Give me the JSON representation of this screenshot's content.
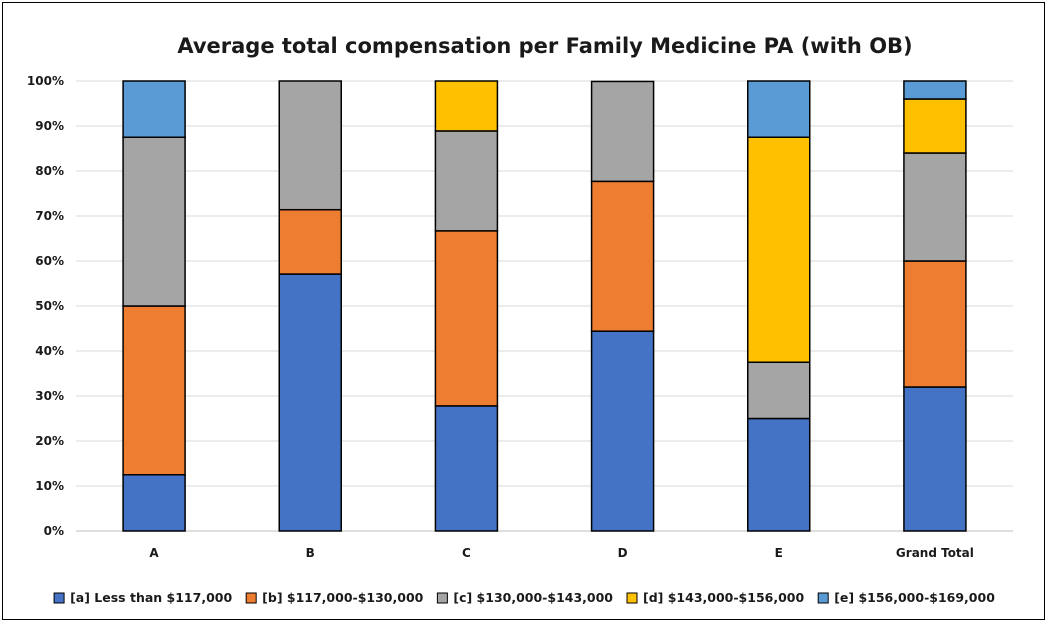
{
  "chart_data": {
    "type": "bar",
    "stacked": true,
    "title": "Average total compensation per Family Medicine PA (with OB)",
    "xlabel": "",
    "ylabel": "",
    "ylim": [
      0,
      100
    ],
    "y_ticks": [
      "0%",
      "10%",
      "20%",
      "30%",
      "40%",
      "50%",
      "60%",
      "70%",
      "80%",
      "90%",
      "100%"
    ],
    "grid": true,
    "legend_position": "bottom",
    "categories": [
      "A",
      "B",
      "C",
      "D",
      "E",
      "Grand Total"
    ],
    "series": [
      {
        "name": "[a] Less than $117,000",
        "color": "#4472C4",
        "values": [
          12.5,
          57.1,
          27.8,
          44.4,
          25.0,
          32.0
        ]
      },
      {
        "name": "[b] $117,000-$130,000",
        "color": "#ED7D31",
        "values": [
          37.5,
          14.3,
          38.9,
          33.3,
          0,
          28.0
        ]
      },
      {
        "name": "[c] $130,000-$143,000",
        "color": "#A5A5A5",
        "values": [
          37.5,
          28.6,
          22.2,
          22.2,
          12.5,
          24.0
        ]
      },
      {
        "name": "[d] $143,000-$156,000",
        "color": "#FFC000",
        "values": [
          0,
          0,
          11.1,
          0,
          50.0,
          12.0
        ]
      },
      {
        "name": "[e] $156,000-$169,000",
        "color": "#5B9BD5",
        "values": [
          12.5,
          0,
          0,
          0,
          12.5,
          4.0
        ]
      }
    ]
  }
}
